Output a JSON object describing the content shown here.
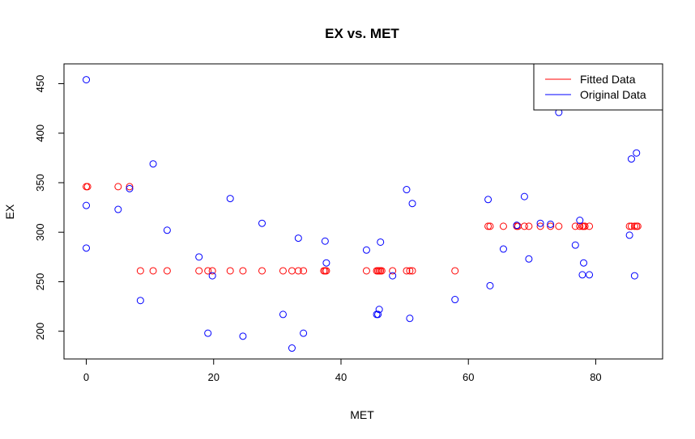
{
  "chart_data": {
    "type": "scatter",
    "title": "EX vs. MET",
    "xlabel": "MET",
    "ylabel": "EX",
    "xlim": [
      -3.5,
      90.5
    ],
    "ylim": [
      172,
      470
    ],
    "x_ticks": [
      0,
      20,
      40,
      60,
      80
    ],
    "y_ticks": [
      200,
      250,
      300,
      350,
      400,
      450
    ],
    "grid": false,
    "legend_position": "top-right",
    "series": [
      {
        "name": "Fitted Data",
        "color": "#ff0000",
        "marker": "open-circle",
        "points": [
          [
            0,
            346
          ],
          [
            0.2,
            346
          ],
          [
            5,
            346
          ],
          [
            6.8,
            346
          ],
          [
            8.5,
            261
          ],
          [
            10.5,
            261
          ],
          [
            12.7,
            261
          ],
          [
            17.7,
            261
          ],
          [
            19.1,
            261
          ],
          [
            19.8,
            261
          ],
          [
            22.6,
            261
          ],
          [
            24.6,
            261
          ],
          [
            27.6,
            261
          ],
          [
            30.9,
            261
          ],
          [
            32.3,
            261
          ],
          [
            33.3,
            261
          ],
          [
            34.1,
            261
          ],
          [
            37.3,
            261
          ],
          [
            37.5,
            261
          ],
          [
            37.7,
            261
          ],
          [
            44,
            261
          ],
          [
            45.6,
            261
          ],
          [
            45.8,
            261
          ],
          [
            46,
            261
          ],
          [
            46.2,
            261
          ],
          [
            46.4,
            261
          ],
          [
            48.1,
            261
          ],
          [
            50.3,
            261
          ],
          [
            50.8,
            261
          ],
          [
            51.2,
            261
          ],
          [
            57.9,
            261
          ],
          [
            63.1,
            306
          ],
          [
            63.4,
            306
          ],
          [
            65.5,
            306
          ],
          [
            67.6,
            306
          ],
          [
            67.8,
            306
          ],
          [
            68.8,
            306
          ],
          [
            69.5,
            306
          ],
          [
            71.3,
            306
          ],
          [
            72.9,
            306
          ],
          [
            74.2,
            306
          ],
          [
            76.8,
            306
          ],
          [
            77.5,
            306
          ],
          [
            77.9,
            306
          ],
          [
            78.1,
            306
          ],
          [
            78.3,
            306
          ],
          [
            79,
            306
          ],
          [
            85.3,
            306
          ],
          [
            85.6,
            306
          ],
          [
            86.1,
            306
          ],
          [
            86.4,
            306
          ],
          [
            86.6,
            306
          ]
        ]
      },
      {
        "name": "Original Data",
        "color": "#0000ff",
        "marker": "open-circle",
        "points": [
          [
            0,
            454
          ],
          [
            0,
            327
          ],
          [
            0,
            284
          ],
          [
            5,
            323
          ],
          [
            6.8,
            344
          ],
          [
            8.5,
            231
          ],
          [
            10.5,
            369
          ],
          [
            12.7,
            302
          ],
          [
            17.7,
            275
          ],
          [
            19.1,
            198
          ],
          [
            19.8,
            256
          ],
          [
            22.6,
            334
          ],
          [
            24.6,
            195
          ],
          [
            27.6,
            309
          ],
          [
            30.9,
            217
          ],
          [
            32.3,
            183
          ],
          [
            33.3,
            294
          ],
          [
            34.1,
            198
          ],
          [
            37.5,
            291
          ],
          [
            37.7,
            269
          ],
          [
            44,
            282
          ],
          [
            45.6,
            217
          ],
          [
            45.8,
            217
          ],
          [
            46,
            222
          ],
          [
            46.2,
            290
          ],
          [
            48.1,
            256
          ],
          [
            50.3,
            343
          ],
          [
            50.8,
            213
          ],
          [
            51.2,
            329
          ],
          [
            57.9,
            232
          ],
          [
            63.1,
            333
          ],
          [
            63.4,
            246
          ],
          [
            65.5,
            283
          ],
          [
            67.6,
            307
          ],
          [
            68.8,
            336
          ],
          [
            69.5,
            273
          ],
          [
            71.3,
            309
          ],
          [
            72.9,
            308
          ],
          [
            74.2,
            421
          ],
          [
            76.8,
            287
          ],
          [
            77.5,
            312
          ],
          [
            77.9,
            257
          ],
          [
            78.1,
            269
          ],
          [
            79,
            257
          ],
          [
            85.3,
            297
          ],
          [
            85.6,
            374
          ],
          [
            86.1,
            256
          ],
          [
            86.4,
            380
          ]
        ]
      }
    ]
  }
}
